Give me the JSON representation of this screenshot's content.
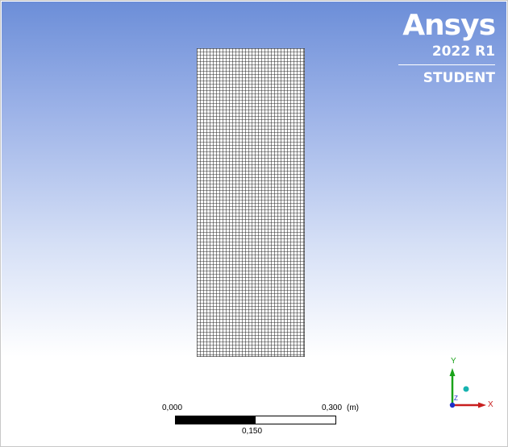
{
  "logo": {
    "name": "Ansys",
    "version": "2022 R1",
    "edition": "STUDENT"
  },
  "mesh": {
    "element_rows": 96,
    "element_columns": 34
  },
  "scale": {
    "start_label": "0,000",
    "mid_label": "0,150",
    "end_label": "0,300",
    "unit_label": "(m)"
  },
  "triad": {
    "y_label": "Y",
    "x_label": "X",
    "z_label": "Z"
  },
  "colors": {
    "background_top": "#6c8ed8",
    "background_bottom": "#ffffff",
    "mesh_fill": "#ffffff",
    "mesh_lines": "#2a2a2a",
    "y_axis": "#1aa31a",
    "x_axis": "#c81e1e",
    "z_axis": "#1e2fc8",
    "triad_ball": "#17b3b0"
  }
}
